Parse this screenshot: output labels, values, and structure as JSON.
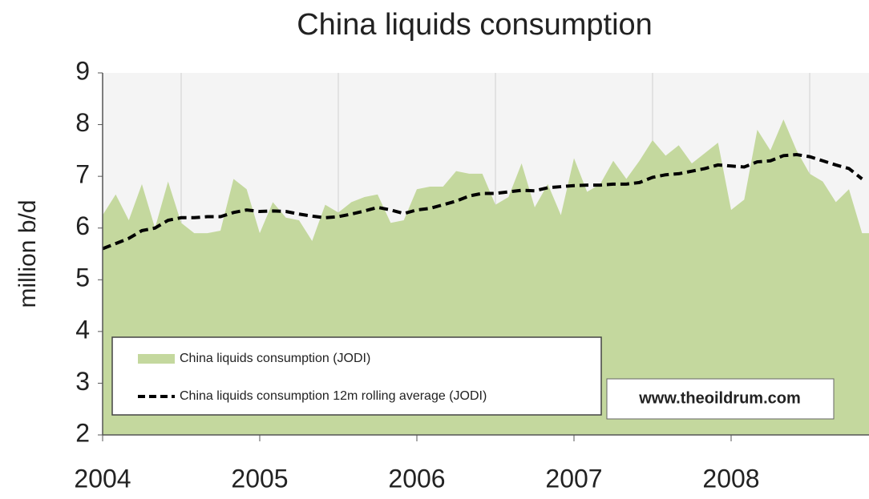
{
  "chart_data": {
    "type": "area",
    "title": "China liquids consumption",
    "y_label": "million b/d",
    "annotation": "www.theoildrum.com",
    "categories": [
      "2004",
      null,
      null,
      null,
      null,
      null,
      null,
      null,
      null,
      null,
      null,
      null,
      "2005",
      null,
      null,
      null,
      null,
      null,
      null,
      null,
      null,
      null,
      null,
      null,
      "2006",
      null,
      null,
      null,
      null,
      null,
      null,
      null,
      null,
      null,
      null,
      null,
      "2007",
      null,
      null,
      null,
      null,
      null,
      null,
      null,
      null,
      null,
      null,
      null,
      "2008",
      null,
      null,
      null,
      null,
      null,
      null,
      null,
      null,
      null,
      null
    ],
    "series": [
      {
        "name": "China liquids consumption (JODI)",
        "type": "area",
        "color": "#c4d89e",
        "values": [
          6.25,
          6.65,
          6.15,
          6.85,
          6.0,
          6.9,
          6.1,
          5.9,
          5.9,
          5.95,
          6.95,
          6.75,
          5.9,
          6.5,
          6.2,
          6.15,
          5.75,
          6.45,
          6.3,
          6.5,
          6.6,
          6.65,
          6.1,
          6.15,
          6.75,
          6.8,
          6.8,
          7.1,
          7.05,
          7.05,
          6.45,
          6.6,
          7.25,
          6.4,
          6.85,
          6.25,
          7.35,
          6.7,
          6.85,
          7.3,
          6.95,
          7.3,
          7.7,
          7.4,
          7.6,
          7.25,
          7.45,
          7.65,
          6.35,
          6.55,
          7.9,
          7.5,
          8.1,
          7.5,
          7.05,
          6.9,
          6.5,
          6.75,
          5.9
        ]
      },
      {
        "name": "China liquids consumption 12m rolling average (JODI)",
        "type": "line",
        "color": "#000000",
        "dashed": true,
        "values": [
          5.6,
          5.7,
          5.8,
          5.95,
          6.0,
          6.15,
          6.2,
          6.2,
          6.22,
          6.22,
          6.3,
          6.35,
          6.32,
          6.33,
          6.32,
          6.27,
          6.23,
          6.2,
          6.22,
          6.27,
          6.33,
          6.4,
          6.35,
          6.28,
          6.35,
          6.38,
          6.45,
          6.52,
          6.62,
          6.67,
          6.67,
          6.7,
          6.73,
          6.72,
          6.78,
          6.8,
          6.82,
          6.83,
          6.83,
          6.85,
          6.85,
          6.88,
          6.98,
          7.03,
          7.05,
          7.1,
          7.15,
          7.22,
          7.2,
          7.18,
          7.28,
          7.3,
          7.4,
          7.42,
          7.38,
          7.3,
          7.22,
          7.15,
          6.95
        ]
      }
    ],
    "ylim": [
      2,
      9
    ],
    "yticks": [
      2,
      3,
      4,
      5,
      6,
      7,
      8,
      9
    ]
  }
}
